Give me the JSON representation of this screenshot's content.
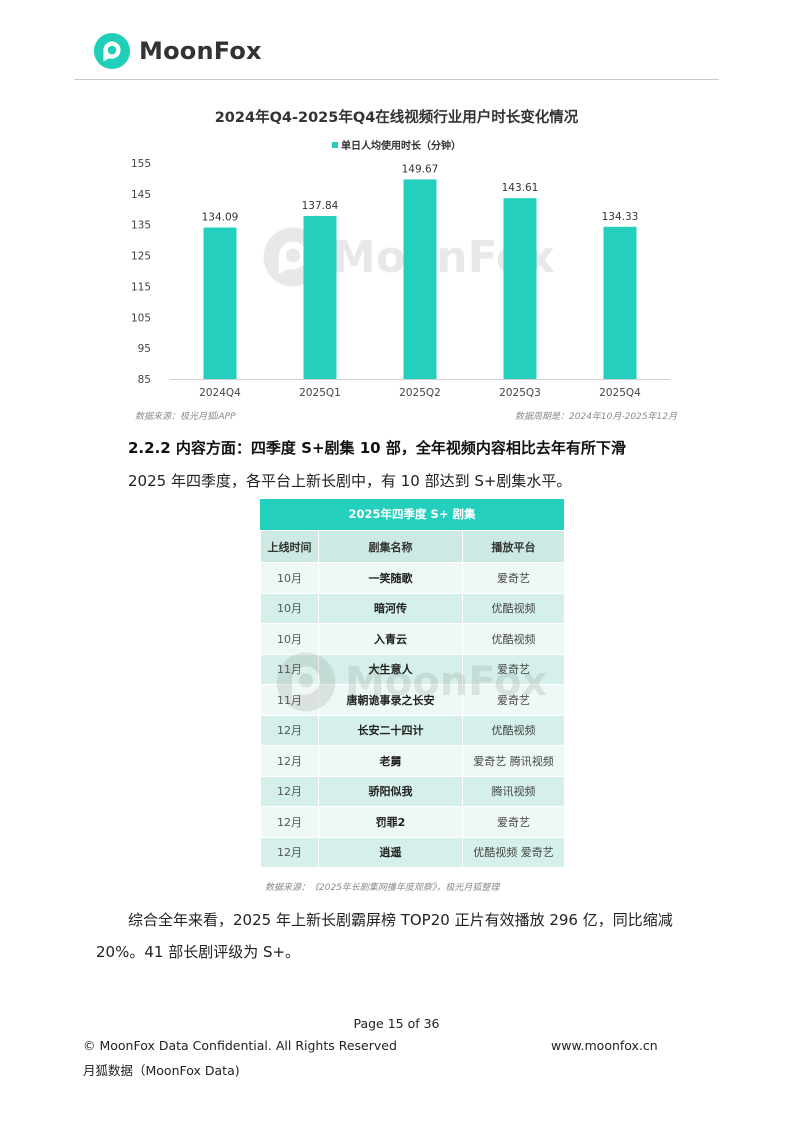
{
  "header": {
    "brand": "MoonFox",
    "brand_color": "#1fcfb8"
  },
  "chart": {
    "title": "2024年Q4-2025年Q4在线视频行业用户时长变化情况",
    "legend": "单日人均使用时长（分钟）",
    "source_left": "数据来源：极光月狐iAPP",
    "source_right": "数据周期是：2024年10月-2025年12月",
    "watermark": "MoonFox"
  },
  "chart_data": {
    "type": "bar",
    "categories": [
      "2024Q4",
      "2025Q1",
      "2025Q2",
      "2025Q3",
      "2025Q4"
    ],
    "series": [
      {
        "name": "单日人均使用时长（分钟）",
        "values": [
          134.09,
          137.84,
          149.67,
          143.61,
          134.33
        ]
      }
    ],
    "data_labels": [
      "134.09",
      "137.84",
      "149.67",
      "143.61",
      "134.33"
    ],
    "yticks": [
      "155",
      "145",
      "135",
      "125",
      "115",
      "105",
      "95",
      "85"
    ],
    "ylim": [
      85,
      155
    ],
    "grid": false,
    "legend_position": "top-center",
    "bar_color": "#24cfbd"
  },
  "section": {
    "heading": "2.2.2 内容方面：四季度 S+剧集 10 部，全年视频内容相比去年有所下滑",
    "lead": "2025 年四季度，各平台上新长剧中，有 10 部达到 S+剧集水平。"
  },
  "table": {
    "title": "2025年四季度 S+ 剧集",
    "headers": [
      "上线时间",
      "剧集名称",
      "播放平台"
    ],
    "rows": [
      [
        "10月",
        "一笑随歌",
        "爱奇艺"
      ],
      [
        "10月",
        "暗河传",
        "优酷视频"
      ],
      [
        "10月",
        "入青云",
        "优酷视频"
      ],
      [
        "11月",
        "大生意人",
        "爱奇艺"
      ],
      [
        "11月",
        "唐朝诡事录之长安",
        "爱奇艺"
      ],
      [
        "12月",
        "长安二十四计",
        "优酷视频"
      ],
      [
        "12月",
        "老舅",
        "爱奇艺 腾讯视频"
      ],
      [
        "12月",
        "骄阳似我",
        "腾讯视频"
      ],
      [
        "12月",
        "罚罪2",
        "爱奇艺"
      ],
      [
        "12月",
        "逍遥",
        "优酷视频 爱奇艺"
      ]
    ],
    "source": "数据来源：《2025年长剧集网播年度观察》，极光月狐整理",
    "watermark": "MoonFox"
  },
  "paragraph": "综合全年来看，2025 年上新长剧霸屏榜 TOP20 正片有效播放 296 亿，同比缩减 20%。41 部长剧评级为 S+。",
  "footer": {
    "page": "Page  15 of 36",
    "copyright": "© MoonFox Data Confidential. All Rights Reserved",
    "url": "www.moonfox.cn",
    "company": "月狐数据（MoonFox Data)"
  }
}
